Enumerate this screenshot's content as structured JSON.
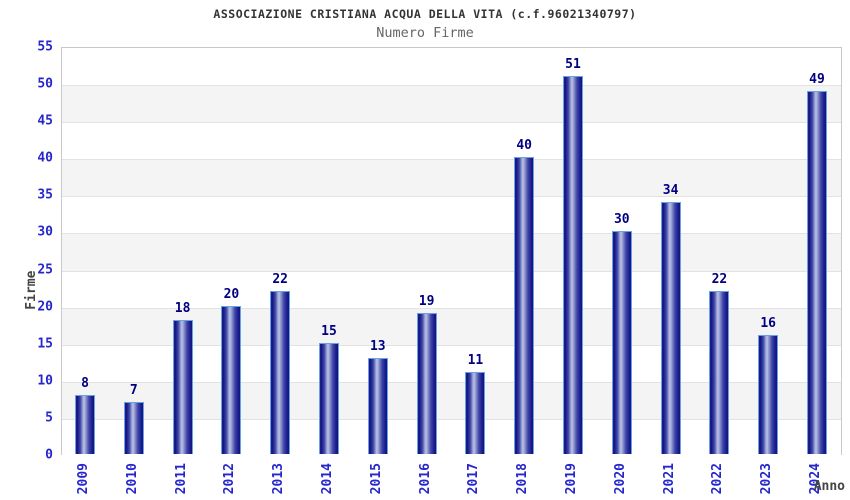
{
  "chart_data": {
    "type": "bar",
    "title": "ASSOCIAZIONE CRISTIANA ACQUA DELLA VITA (c.f.96021340797)",
    "subtitle": "Numero Firme",
    "xlabel": "Anno",
    "ylabel": "Firme",
    "categories": [
      "2009",
      "2010",
      "2011",
      "2012",
      "2013",
      "2014",
      "2015",
      "2016",
      "2017",
      "2018",
      "2019",
      "2020",
      "2021",
      "2022",
      "2023",
      "2024"
    ],
    "values": [
      8,
      7,
      18,
      20,
      22,
      15,
      13,
      19,
      11,
      40,
      51,
      30,
      34,
      22,
      16,
      49
    ],
    "ylim": [
      0,
      55
    ],
    "ytick_step": 5,
    "grid": "horizontal gridlines every 5 units with alternating background bands",
    "legend_position": "none",
    "colors": {
      "bar_dark": "#14147e",
      "bar_light": "#b8c0e6",
      "bar_border": "#66a3e0",
      "tick_label_blue": "#2626cc",
      "value_label_navy": "#000080",
      "title_color": "#333333",
      "subtitle_color": "#666666",
      "axis_title_color": "#444444",
      "band_gray": "#f4f4f4",
      "band_white": "#ffffff",
      "gridline": "#e2e2e2",
      "plot_border": "#c9c9c9"
    }
  }
}
